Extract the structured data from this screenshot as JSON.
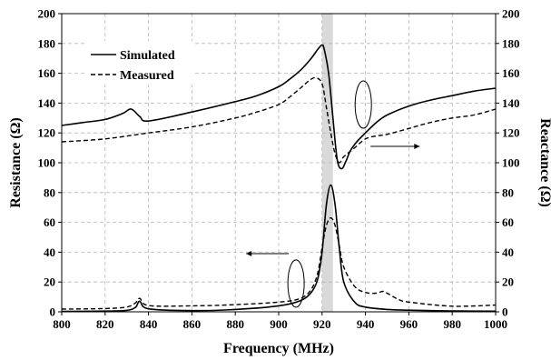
{
  "chart_data": {
    "type": "line",
    "xlabel": "Frequency (MHz)",
    "ylabel_left": "Resistance (Ω)",
    "ylabel_right": "Reactance (Ω)",
    "xlim": [
      800,
      1000
    ],
    "xticks": [
      800,
      820,
      840,
      860,
      880,
      900,
      920,
      940,
      960,
      980,
      1000
    ],
    "ylim_left": [
      0,
      200
    ],
    "ylim_right": [
      0,
      200
    ],
    "yticks": [
      0,
      20,
      40,
      60,
      80,
      100,
      120,
      140,
      160,
      180,
      200
    ],
    "grid": true,
    "legend": {
      "placement": "top-left",
      "entries": [
        {
          "label": "Simulated",
          "style": "solid"
        },
        {
          "label": "Measured",
          "style": "dashed"
        }
      ]
    },
    "highlight_band": {
      "x_range": [
        920,
        925
      ],
      "color": "#d9d9d9"
    },
    "annotations": [
      {
        "kind": "ellipse-arrow",
        "target_axis": "left",
        "series": "resistance",
        "ellipse_center": [
          908,
          19
        ],
        "arrow_to": [
          885,
          39
        ]
      },
      {
        "kind": "ellipse-arrow",
        "target_axis": "right",
        "series": "reactance",
        "ellipse_center": [
          939,
          139
        ],
        "arrow_to": [
          965,
          111
        ]
      }
    ],
    "series": [
      {
        "name": "Simulated",
        "quantity": "resistance",
        "axis": "left",
        "style": "solid",
        "x": [
          800,
          820,
          830,
          834,
          836,
          840,
          860,
          880,
          900,
          910,
          915,
          918,
          920,
          922,
          924,
          926,
          928,
          930,
          935,
          940,
          950,
          960,
          980,
          1000
        ],
        "y": [
          0.3,
          0.5,
          1.0,
          3.0,
          7.0,
          2.0,
          0.8,
          1.6,
          4.0,
          7.5,
          13.0,
          22.0,
          40.0,
          72.0,
          85.0,
          72.0,
          42.0,
          20.0,
          6.5,
          3.2,
          1.6,
          1.1,
          0.6,
          0.4
        ]
      },
      {
        "name": "Measured",
        "quantity": "resistance",
        "axis": "left",
        "style": "dashed",
        "x": [
          800,
          820,
          830,
          834,
          836,
          840,
          860,
          880,
          900,
          910,
          915,
          918,
          920,
          922,
          924,
          926,
          928,
          930,
          935,
          940,
          945,
          948,
          950,
          955,
          960,
          980,
          1000
        ],
        "y": [
          1.8,
          2.2,
          3.2,
          6.0,
          9.0,
          4.2,
          4.0,
          4.8,
          6.5,
          9.0,
          15.0,
          26.0,
          43.0,
          58.0,
          63.0,
          58.0,
          44.0,
          30.0,
          17.0,
          13.0,
          12.5,
          13.8,
          12.5,
          8.5,
          6.5,
          3.8,
          4.5
        ]
      },
      {
        "name": "Simulated",
        "quantity": "reactance",
        "axis": "right",
        "style": "solid",
        "x": [
          800,
          810,
          820,
          828,
          832,
          836,
          840,
          860,
          880,
          890,
          900,
          905,
          910,
          915,
          918,
          920,
          921,
          923,
          925,
          927,
          929,
          931,
          933,
          936,
          940,
          945,
          950,
          960,
          970,
          980,
          990,
          1000
        ],
        "y": [
          125,
          127,
          129,
          133,
          136,
          131,
          128,
          134,
          141,
          145,
          151,
          156,
          162,
          170,
          176,
          179,
          176,
          160,
          130,
          102,
          96,
          101,
          108,
          114,
          120,
          127,
          132,
          138,
          142,
          145,
          148,
          150
        ]
      },
      {
        "name": "Measured",
        "quantity": "reactance",
        "axis": "right",
        "style": "dashed",
        "x": [
          800,
          820,
          840,
          860,
          880,
          890,
          900,
          905,
          910,
          914,
          917,
          920,
          922,
          924,
          926,
          928,
          930,
          935,
          940,
          945,
          950,
          960,
          970,
          980,
          990,
          1000
        ],
        "y": [
          114,
          116,
          120,
          124,
          130,
          134,
          139,
          144,
          150,
          155,
          157,
          153,
          137,
          120,
          106,
          100,
          104,
          110,
          116,
          118,
          119,
          123,
          127,
          130,
          132,
          136
        ]
      }
    ]
  }
}
